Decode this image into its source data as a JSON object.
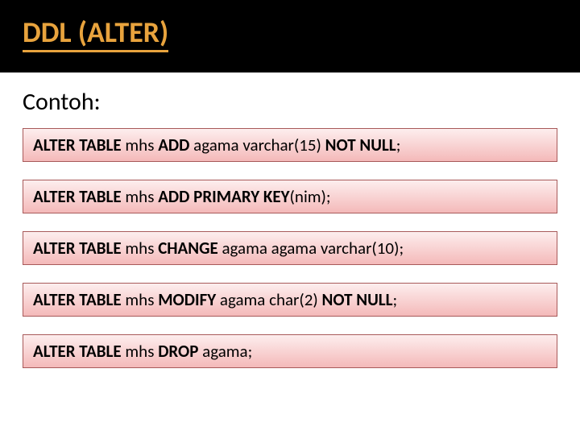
{
  "header": {
    "title": "DDL (ALTER)",
    "title_color": "#e8a33d",
    "underline_color": "#e8a33d",
    "background": "#000000"
  },
  "subtitle": "Contoh:",
  "box_style": {
    "gradient_top": "#fdeeee",
    "gradient_bottom": "#f4b9b9",
    "border_color": "#a85a5a"
  },
  "statements": [
    {
      "kw1": "ALTER TABLE",
      "mid1": " mhs ",
      "kw2": "ADD",
      "mid2": " agama varchar(15) ",
      "kw3": "NOT NULL",
      "tail": ";"
    },
    {
      "kw1": "ALTER TABLE",
      "mid1": " mhs ",
      "kw2": "ADD PRIMARY KEY",
      "mid2": "(nim);",
      "kw3": "",
      "tail": ""
    },
    {
      "kw1": "ALTER TABLE",
      "mid1": " mhs ",
      "kw2": "CHANGE",
      "mid2": " agama agama varchar(10);",
      "kw3": "",
      "tail": ""
    },
    {
      "kw1": "ALTER TABLE",
      "mid1": " mhs ",
      "kw2": "MODIFY",
      "mid2": " agama char(2) ",
      "kw3": "NOT NULL",
      "tail": ";"
    },
    {
      "kw1": "ALTER TABLE",
      "mid1": " mhs ",
      "kw2": "DROP",
      "mid2": " agama;",
      "kw3": "",
      "tail": ""
    }
  ]
}
